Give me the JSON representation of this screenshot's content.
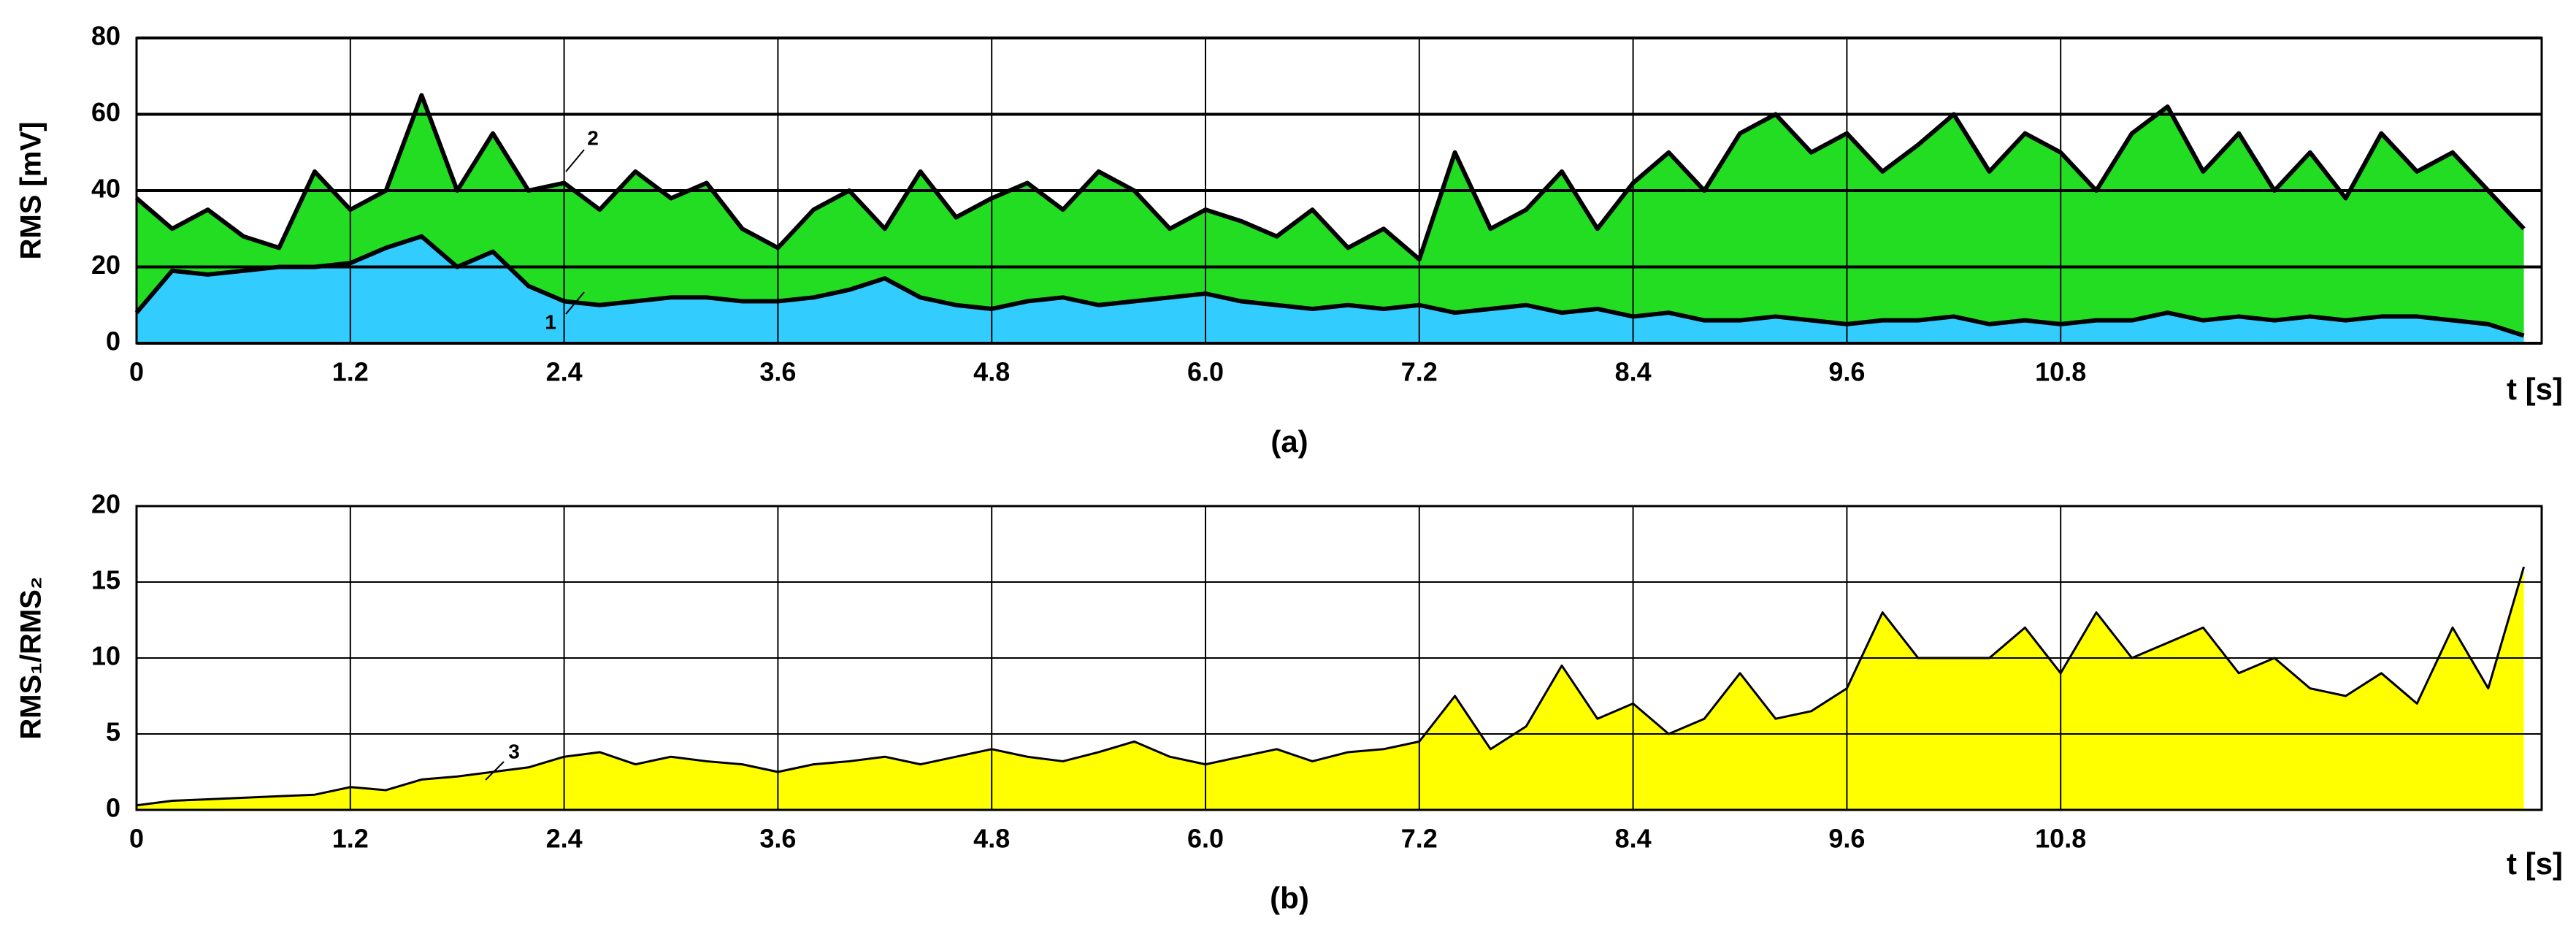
{
  "chart_data": [
    {
      "type": "area",
      "ylabel": "RMS [mV]",
      "xlabel": "t [s]",
      "caption": "(a)",
      "grid": true,
      "xlim": [
        0,
        13.5
      ],
      "ylim": [
        0,
        80
      ],
      "xticks": [
        0,
        1.2,
        2.4,
        3.6,
        4.8,
        {
          "value": 6,
          "label": "6.0"
        },
        7.2,
        8.4,
        9.6,
        10.8
      ],
      "yticks": [
        0,
        20,
        40,
        60,
        80
      ],
      "x": [
        0,
        0.2,
        0.4,
        0.6,
        0.8,
        1,
        1.2,
        1.4,
        1.6,
        1.8,
        2,
        2.2,
        2.4,
        2.6,
        2.8,
        3,
        3.2,
        3.4,
        3.6,
        3.8,
        4,
        4.2,
        4.4,
        4.6,
        4.8,
        5,
        5.2,
        5.4,
        5.6,
        5.8,
        6,
        6.2,
        6.4,
        6.6,
        6.8,
        7,
        7.2,
        7.4,
        7.6,
        7.8,
        8,
        8.2,
        8.4,
        8.6,
        8.8,
        9,
        9.2,
        9.4,
        9.6,
        9.8,
        10,
        10.2,
        10.4,
        10.6,
        10.8,
        11,
        11.2,
        11.4,
        11.6,
        11.8,
        12,
        12.2,
        12.4,
        12.6,
        12.8,
        13,
        13.2,
        13.4
      ],
      "series": [
        {
          "name": "1",
          "color": "#33ccff",
          "values": [
            8,
            19,
            18,
            19,
            20,
            20,
            21,
            25,
            28,
            20,
            24,
            15,
            11,
            10,
            11,
            12,
            12,
            11,
            11,
            12,
            14,
            17,
            12,
            10,
            9,
            11,
            12,
            10,
            11,
            12,
            13,
            11,
            10,
            9,
            10,
            9,
            10,
            8,
            9,
            10,
            8,
            9,
            7,
            8,
            6,
            6,
            7,
            6,
            5,
            6,
            6,
            7,
            5,
            6,
            5,
            6,
            6,
            8,
            6,
            7,
            6,
            7,
            6,
            7,
            7,
            6,
            5,
            2
          ]
        },
        {
          "name": "2",
          "color": "#22dd22",
          "values": [
            38,
            30,
            35,
            28,
            25,
            45,
            35,
            40,
            65,
            40,
            55,
            40,
            42,
            35,
            45,
            38,
            42,
            30,
            25,
            35,
            40,
            30,
            45,
            33,
            38,
            42,
            35,
            45,
            40,
            30,
            35,
            32,
            28,
            35,
            25,
            30,
            22,
            50,
            30,
            35,
            45,
            30,
            42,
            50,
            40,
            55,
            60,
            50,
            55,
            45,
            52,
            60,
            45,
            55,
            50,
            40,
            55,
            62,
            45,
            55,
            40,
            50,
            38,
            55,
            45,
            50,
            40,
            30
          ]
        }
      ]
    },
    {
      "type": "area",
      "ylabel": "RMS₁/RMS₂",
      "xlabel": "t [s]",
      "caption": "(b)",
      "grid": true,
      "xlim": [
        0,
        13.5
      ],
      "ylim": [
        0,
        20
      ],
      "xticks": [
        0,
        1.2,
        2.4,
        3.6,
        4.8,
        {
          "value": 6,
          "label": "6.0"
        },
        7.2,
        8.4,
        9.6,
        10.8
      ],
      "yticks": [
        0,
        5,
        10,
        15,
        20
      ],
      "x": [
        0,
        0.2,
        0.4,
        0.6,
        0.8,
        1,
        1.2,
        1.4,
        1.6,
        1.8,
        2,
        2.2,
        2.4,
        2.6,
        2.8,
        3,
        3.2,
        3.4,
        3.6,
        3.8,
        4,
        4.2,
        4.4,
        4.6,
        4.8,
        5,
        5.2,
        5.4,
        5.6,
        5.8,
        6,
        6.2,
        6.4,
        6.6,
        6.8,
        7,
        7.2,
        7.4,
        7.6,
        7.8,
        8,
        8.2,
        8.4,
        8.6,
        8.8,
        9,
        9.2,
        9.4,
        9.6,
        9.8,
        10,
        10.2,
        10.4,
        10.6,
        10.8,
        11,
        11.2,
        11.4,
        11.6,
        11.8,
        12,
        12.2,
        12.4,
        12.6,
        12.8,
        13,
        13.2,
        13.4
      ],
      "series": [
        {
          "name": "3",
          "color": "#ffff00",
          "values": [
            0.3,
            0.6,
            0.7,
            0.8,
            0.9,
            1,
            1.5,
            1.3,
            2,
            2.2,
            2.5,
            2.8,
            3.5,
            3.8,
            3,
            3.5,
            3.2,
            3,
            2.5,
            3,
            3.2,
            3.5,
            3,
            3.5,
            4,
            3.5,
            3.2,
            3.8,
            4.5,
            3.5,
            3,
            3.5,
            4,
            3.2,
            3.8,
            4,
            4.5,
            7.5,
            4,
            5.5,
            9.5,
            6,
            7,
            5,
            6,
            9,
            6,
            6.5,
            8,
            13,
            10,
            10,
            10,
            12,
            9,
            13,
            10,
            11,
            12,
            9,
            10,
            8,
            7.5,
            9,
            7,
            12,
            8,
            16
          ]
        }
      ]
    }
  ]
}
